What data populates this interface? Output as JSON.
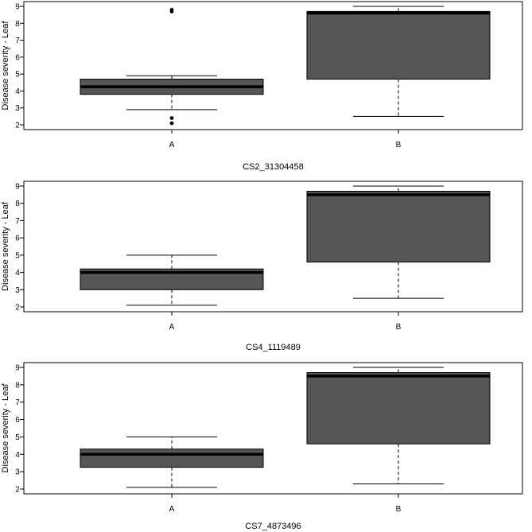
{
  "chart_data": [
    {
      "type": "box",
      "xlabel": "CS2_31304458",
      "ylabel": "Disease severity - Leaf",
      "categories": [
        "A",
        "B"
      ],
      "ylim": [
        2,
        9
      ],
      "yticks": [
        2,
        3,
        4,
        5,
        6,
        7,
        8,
        9
      ],
      "boxes": [
        {
          "category": "A",
          "whisker_low": 2.9,
          "q1": 3.8,
          "median": 4.25,
          "q3": 4.7,
          "whisker_high": 4.9,
          "outliers": [
            2.1,
            2.4,
            8.7,
            8.8
          ]
        },
        {
          "category": "B",
          "whisker_low": 2.5,
          "q1": 4.7,
          "median": 8.6,
          "q3": 8.7,
          "whisker_high": 9.0,
          "outliers": []
        }
      ],
      "box_color": "#555555"
    },
    {
      "type": "box",
      "xlabel": "CS4_1119489",
      "ylabel": "Disease severity - Leaf",
      "categories": [
        "A",
        "B"
      ],
      "ylim": [
        2,
        9
      ],
      "yticks": [
        2,
        3,
        4,
        5,
        6,
        7,
        8,
        9
      ],
      "boxes": [
        {
          "category": "A",
          "whisker_low": 2.1,
          "q1": 3.0,
          "median": 4.0,
          "q3": 4.2,
          "whisker_high": 5.0,
          "outliers": []
        },
        {
          "category": "B",
          "whisker_low": 2.5,
          "q1": 4.6,
          "median": 8.5,
          "q3": 8.7,
          "whisker_high": 9.0,
          "outliers": []
        }
      ],
      "box_color": "#555555"
    },
    {
      "type": "box",
      "xlabel": "CS7_4873496",
      "ylabel": "Disease severity - Leaf",
      "categories": [
        "A",
        "B"
      ],
      "ylim": [
        2,
        9
      ],
      "yticks": [
        2,
        3,
        4,
        5,
        6,
        7,
        8,
        9
      ],
      "boxes": [
        {
          "category": "A",
          "whisker_low": 2.1,
          "q1": 3.25,
          "median": 4.0,
          "q3": 4.3,
          "whisker_high": 5.0,
          "outliers": []
        },
        {
          "category": "B",
          "whisker_low": 2.3,
          "q1": 4.6,
          "median": 8.5,
          "q3": 8.7,
          "whisker_high": 9.0,
          "outliers": []
        }
      ],
      "box_color": "#555555"
    }
  ]
}
